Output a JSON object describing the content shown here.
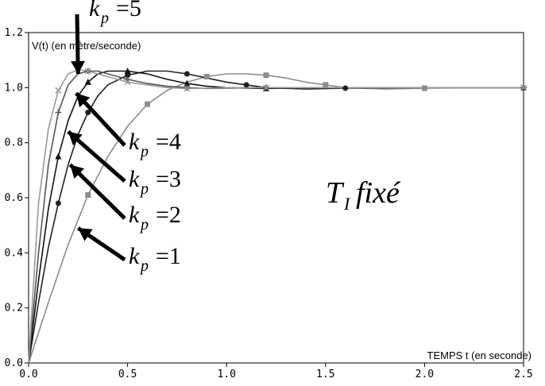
{
  "chart_data": {
    "type": "line",
    "title": "",
    "ylabel": "V(t) (en mètre/seconde)",
    "xlabel": "TEMPS t (en seconde)",
    "xlim": [
      0,
      2.5
    ],
    "ylim": [
      0,
      1.2
    ],
    "x_ticks": [
      "0.0",
      "0.5",
      "1.0",
      "1.5",
      "2.0",
      "2.5"
    ],
    "y_ticks": [
      "0.0",
      "0.2",
      "0.4",
      "0.6",
      "0.8",
      "1.0",
      "1.2"
    ],
    "grid": false,
    "series": [
      {
        "label": "k_p = 1",
        "color": "#8c8c8c",
        "marker": "square",
        "x": [
          0,
          0.1,
          0.2,
          0.3,
          0.4,
          0.5,
          0.6,
          0.7,
          0.8,
          0.9,
          1.0,
          1.1,
          1.2,
          1.3,
          1.4,
          1.5,
          1.6,
          1.8,
          2.0,
          2.2,
          2.5
        ],
        "y": [
          0,
          0.22,
          0.43,
          0.61,
          0.75,
          0.86,
          0.94,
          0.99,
          1.02,
          1.04,
          1.05,
          1.05,
          1.045,
          1.035,
          1.02,
          1.01,
          1.0,
          0.995,
          0.998,
          1.0,
          1.0
        ]
      },
      {
        "label": "k_p = 2",
        "color": "#222222",
        "marker": "circle",
        "x": [
          0,
          0.05,
          0.1,
          0.15,
          0.2,
          0.25,
          0.3,
          0.35,
          0.4,
          0.5,
          0.6,
          0.7,
          0.8,
          0.9,
          1.0,
          1.1,
          1.2,
          1.4,
          1.6,
          2.0,
          2.5
        ],
        "y": [
          0,
          0.22,
          0.42,
          0.58,
          0.72,
          0.83,
          0.91,
          0.97,
          1.01,
          1.045,
          1.06,
          1.06,
          1.05,
          1.035,
          1.02,
          1.01,
          1.0,
          0.995,
          0.998,
          1.0,
          1.0
        ]
      },
      {
        "label": "k_p = 3",
        "color": "#111111",
        "marker": "triangle",
        "x": [
          0,
          0.05,
          0.1,
          0.15,
          0.2,
          0.25,
          0.3,
          0.35,
          0.4,
          0.5,
          0.6,
          0.7,
          0.8,
          0.9,
          1.0,
          1.2,
          1.4,
          2.0,
          2.5
        ],
        "y": [
          0,
          0.3,
          0.56,
          0.75,
          0.88,
          0.97,
          1.02,
          1.05,
          1.06,
          1.06,
          1.05,
          1.03,
          1.015,
          1.005,
          1.0,
          0.997,
          1.0,
          1.0,
          1.0
        ]
      },
      {
        "label": "k_p = 4",
        "color": "#555555",
        "marker": "plus",
        "x": [
          0,
          0.05,
          0.1,
          0.15,
          0.2,
          0.25,
          0.3,
          0.35,
          0.4,
          0.5,
          0.6,
          0.7,
          0.8,
          0.9,
          1.0,
          1.2,
          1.5,
          2.0,
          2.5
        ],
        "y": [
          0,
          0.4,
          0.72,
          0.91,
          1.01,
          1.05,
          1.06,
          1.06,
          1.05,
          1.03,
          1.015,
          1.005,
          1.0,
          0.997,
          0.998,
          1.0,
          1.0,
          1.0,
          1.0
        ]
      },
      {
        "label": "k_p = 5",
        "color": "#999999",
        "marker": "cross",
        "x": [
          0,
          0.05,
          0.1,
          0.15,
          0.2,
          0.25,
          0.3,
          0.35,
          0.4,
          0.5,
          0.6,
          0.7,
          0.8,
          0.9,
          1.0,
          1.2,
          1.5,
          2.0,
          2.5
        ],
        "y": [
          0,
          0.58,
          0.85,
          0.99,
          1.05,
          1.065,
          1.06,
          1.05,
          1.04,
          1.02,
          1.01,
          1.0,
          0.997,
          0.998,
          1.0,
          1.0,
          1.0,
          1.0,
          1.0
        ]
      }
    ],
    "annotations": [
      {
        "label": "k_p = 5",
        "target": {
          "x": 0.25,
          "y": 1.05
        }
      },
      {
        "label": "k_p = 4",
        "target": {
          "x": 0.24,
          "y": 0.98
        }
      },
      {
        "label": "k_p = 3",
        "target": {
          "x": 0.2,
          "y": 0.84
        }
      },
      {
        "label": "k_p = 2",
        "target": {
          "x": 0.21,
          "y": 0.72
        }
      },
      {
        "label": "k_p = 1",
        "target": {
          "x": 0.25,
          "y": 0.49
        }
      }
    ],
    "note": "T_I fixé"
  }
}
